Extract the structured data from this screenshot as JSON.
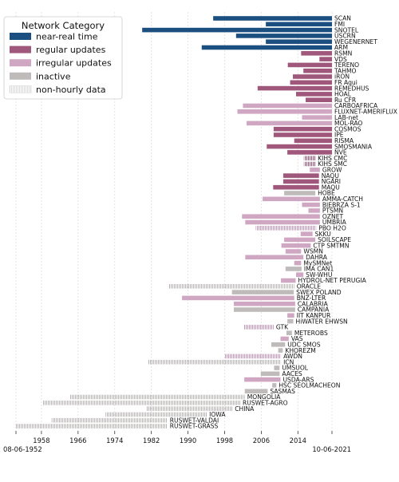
{
  "chart_data": {
    "type": "bar",
    "orientation": "horizontal",
    "title": "",
    "xlabel": "",
    "ylabel": "",
    "x_axis": "date",
    "xlim": [
      "1952-06-08",
      "2021-06-10"
    ],
    "xticks": [
      "1958",
      "1966",
      "1974",
      "1982",
      "1990",
      "1998",
      "2006",
      "2014"
    ],
    "x_start_label": "08-06-1952",
    "x_end_label": "10-06-2021",
    "grid": "vertical dashed",
    "legend": {
      "title": "Network Category",
      "placement": "top-left",
      "entries": [
        {
          "label": "near-real time",
          "color": "#1b4f80",
          "hatched": false
        },
        {
          "label": "regular updates",
          "color": "#a0577c",
          "hatched": false
        },
        {
          "label": "irregular updates",
          "color": "#cfa7c3",
          "hatched": false
        },
        {
          "label": "inactive",
          "color": "#c0bbbb",
          "hatched": false
        },
        {
          "label": "non-hourly data",
          "color": "#ffffff",
          "hatched": true
        }
      ]
    },
    "series": [
      {
        "name": "SCAN",
        "category": "near-real time",
        "start": 1995.5,
        "end": 2021.44
      },
      {
        "name": "FMI",
        "category": "near-real time",
        "start": 2007.0,
        "end": 2021.44
      },
      {
        "name": "SNOTEL",
        "category": "near-real time",
        "start": 1980.0,
        "end": 2021.44
      },
      {
        "name": "USCRN",
        "category": "near-real time",
        "start": 2000.5,
        "end": 2021.44
      },
      {
        "name": "WEGENERNET",
        "category": "near-real time",
        "start": 2007.0,
        "end": 2021.44
      },
      {
        "name": "ARM",
        "category": "near-real time",
        "start": 1993.0,
        "end": 2021.44
      },
      {
        "name": "RSMN",
        "category": "regular updates",
        "start": 2014.7,
        "end": 2021.44
      },
      {
        "name": "VDS",
        "category": "regular updates",
        "start": 2018.7,
        "end": 2021.44
      },
      {
        "name": "TERENO",
        "category": "regular updates",
        "start": 2011.8,
        "end": 2021.44
      },
      {
        "name": "TAHMO",
        "category": "regular updates",
        "start": 2015.2,
        "end": 2021.44
      },
      {
        "name": "iRON",
        "category": "regular updates",
        "start": 2012.9,
        "end": 2021.44
      },
      {
        "name": "FR Aqui",
        "category": "regular updates",
        "start": 2012.3,
        "end": 2021.44
      },
      {
        "name": "REMEDHUS",
        "category": "regular updates",
        "start": 2005.2,
        "end": 2021.44
      },
      {
        "name": "HOAL",
        "category": "regular updates",
        "start": 2013.6,
        "end": 2021.44
      },
      {
        "name": "Ru CFR",
        "category": "regular updates",
        "start": 2015.7,
        "end": 2021.44
      },
      {
        "name": "CARBOAFRICA",
        "category": "irregular updates",
        "start": 2002.0,
        "end": 2021.44
      },
      {
        "name": "FLUXNET-AMERIFLUX",
        "category": "irregular updates",
        "start": 2000.8,
        "end": 2021.44
      },
      {
        "name": "LAB-net",
        "category": "irregular updates",
        "start": 2014.9,
        "end": 2021.44
      },
      {
        "name": "MOL-RAO",
        "category": "irregular updates",
        "start": 2002.8,
        "end": 2021.44
      },
      {
        "name": "COSMOS",
        "category": "regular updates",
        "start": 2008.7,
        "end": 2021.44
      },
      {
        "name": "IPE",
        "category": "regular updates",
        "start": 2008.7,
        "end": 2021.44
      },
      {
        "name": "RISMA",
        "category": "regular updates",
        "start": 2013.2,
        "end": 2021.44
      },
      {
        "name": "SMOSMANIA",
        "category": "regular updates",
        "start": 2007.2,
        "end": 2021.44
      },
      {
        "name": "NVE",
        "category": "regular updates",
        "start": 2011.7,
        "end": 2021.44
      },
      {
        "name": "KIHS CMC",
        "category": "regular updates",
        "hatched": true,
        "start": 2015.3,
        "end": 2017.8
      },
      {
        "name": "KIHS SMC",
        "category": "regular updates",
        "hatched": true,
        "start": 2015.3,
        "end": 2017.8
      },
      {
        "name": "GROW",
        "category": "irregular updates",
        "start": 2016.6,
        "end": 2018.8
      },
      {
        "name": "NAQU",
        "category": "regular updates",
        "start": 2010.8,
        "end": 2018.6
      },
      {
        "name": "NGARI",
        "category": "regular updates",
        "start": 2010.8,
        "end": 2018.6
      },
      {
        "name": "MAQU",
        "category": "regular updates",
        "start": 2008.6,
        "end": 2018.6
      },
      {
        "name": "HOBE",
        "category": "inactive",
        "start": 2011.0,
        "end": 2017.8
      },
      {
        "name": "AMMA-CATCH",
        "category": "irregular updates",
        "start": 2006.3,
        "end": 2018.8
      },
      {
        "name": "BIEBRZA S-1",
        "category": "irregular updates",
        "start": 2014.9,
        "end": 2018.8
      },
      {
        "name": "PTSMN",
        "category": "irregular updates",
        "start": 2016.3,
        "end": 2018.8
      },
      {
        "name": "OZNET",
        "category": "irregular updates",
        "start": 2001.8,
        "end": 2018.8
      },
      {
        "name": "UMBRIA",
        "category": "irregular updates",
        "start": 2002.5,
        "end": 2018.8
      },
      {
        "name": "PBO H2O",
        "category": "irregular updates",
        "hatched": true,
        "start": 2004.8,
        "end": 2018.0
      },
      {
        "name": "SKKU",
        "category": "irregular updates",
        "start": 2014.6,
        "end": 2017.2
      },
      {
        "name": "SOILSCAPE",
        "category": "irregular updates",
        "start": 2011.0,
        "end": 2017.8
      },
      {
        "name": "CTP SMTMN",
        "category": "irregular updates",
        "start": 2010.4,
        "end": 2016.8
      },
      {
        "name": "WSMN",
        "category": "irregular updates",
        "start": 2011.3,
        "end": 2014.7
      },
      {
        "name": "DAHRA",
        "category": "irregular updates",
        "start": 2002.5,
        "end": 2015.2
      },
      {
        "name": "MySMNet",
        "category": "irregular updates",
        "start": 2013.2,
        "end": 2014.7
      },
      {
        "name": "IMA CAN1",
        "category": "inactive",
        "start": 2011.3,
        "end": 2014.8
      },
      {
        "name": "SW-WHU",
        "category": "irregular updates",
        "start": 2013.6,
        "end": 2015.2
      },
      {
        "name": "HYDROL-NET PERUGIA",
        "category": "irregular updates",
        "start": 2010.3,
        "end": 2013.5
      },
      {
        "name": "ORACLE",
        "category": "inactive",
        "hatched": true,
        "start": 1985.7,
        "end": 2013.2
      },
      {
        "name": "SWEX POLAND",
        "category": "inactive",
        "start": 1999.6,
        "end": 2013.1
      },
      {
        "name": "BNZ-LTER",
        "category": "irregular updates",
        "start": 1988.7,
        "end": 2013.2
      },
      {
        "name": "CALABRIA",
        "category": "irregular updates",
        "start": 2000.0,
        "end": 2013.4
      },
      {
        "name": "CAMPANIA",
        "category": "inactive",
        "start": 2000.0,
        "end": 2013.4
      },
      {
        "name": "IIT KANPUR",
        "category": "irregular updates",
        "start": 2011.7,
        "end": 2013.2
      },
      {
        "name": "HiWATER EHWSN",
        "category": "inactive",
        "start": 2011.7,
        "end": 2013.0
      },
      {
        "name": "GTK",
        "category": "irregular updates",
        "hatched": true,
        "start": 2002.2,
        "end": 2008.7
      },
      {
        "name": "METEROBS",
        "category": "inactive",
        "start": 2011.5,
        "end": 2012.7
      },
      {
        "name": "VAS",
        "category": "irregular updates",
        "start": 2010.2,
        "end": 2012.0
      },
      {
        "name": "UDC SMOS",
        "category": "inactive",
        "start": 2008.2,
        "end": 2011.2
      },
      {
        "name": "KHOREZM",
        "category": "inactive",
        "start": 2009.7,
        "end": 2010.7
      },
      {
        "name": "AWDN",
        "category": "irregular updates",
        "hatched": true,
        "start": 1998.1,
        "end": 2010.3
      },
      {
        "name": "ICN",
        "category": "inactive",
        "hatched": true,
        "start": 1981.2,
        "end": 2010.3
      },
      {
        "name": "UMSUOL",
        "category": "inactive",
        "start": 2008.8,
        "end": 2010.0
      },
      {
        "name": "AACES",
        "category": "inactive",
        "start": 2005.9,
        "end": 2010.0
      },
      {
        "name": "USDA-ARS",
        "category": "irregular updates",
        "start": 2002.3,
        "end": 2010.2
      },
      {
        "name": "HSC SEOLMACHEON",
        "category": "inactive",
        "start": 2008.4,
        "end": 2009.3
      },
      {
        "name": "SASMAS",
        "category": "inactive",
        "start": 2002.4,
        "end": 2007.4
      },
      {
        "name": "MONGOLIA",
        "category": "inactive",
        "hatched": true,
        "start": 1964.2,
        "end": 2002.4
      },
      {
        "name": "RUSWET-AGRO",
        "category": "inactive",
        "hatched": true,
        "start": 1958.3,
        "end": 2001.4
      },
      {
        "name": "CHINA",
        "category": "inactive",
        "hatched": true,
        "start": 1981.0,
        "end": 1999.7
      },
      {
        "name": "IOWA",
        "category": "inactive",
        "hatched": true,
        "start": 1972.0,
        "end": 1994.1
      },
      {
        "name": "RUSWET-VALDAI",
        "category": "inactive",
        "hatched": true,
        "start": 1960.2,
        "end": 1985.5
      },
      {
        "name": "RUSWET-GRASS",
        "category": "inactive",
        "hatched": true,
        "start": 1952.44,
        "end": 1985.5
      }
    ]
  }
}
